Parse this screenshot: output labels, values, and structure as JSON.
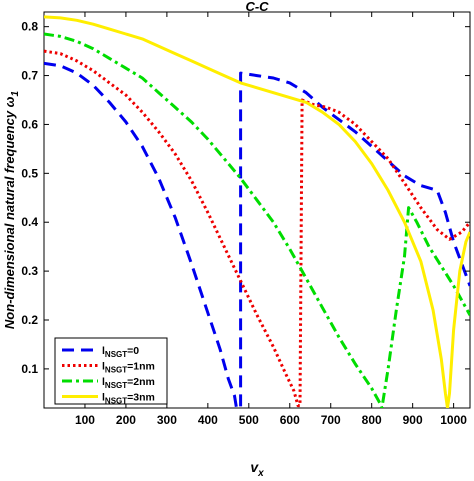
{
  "chart_data": {
    "type": "line",
    "title": "C-C",
    "xlabel": "v",
    "xlabel_sub": "x",
    "ylabel": "Non-dimensional natural frequency ω",
    "ylabel_sub": "1",
    "xlim": [
      0,
      1040
    ],
    "ylim": [
      0.02,
      0.83
    ],
    "xticks": [
      100,
      200,
      300,
      400,
      500,
      600,
      700,
      800,
      900,
      1000
    ],
    "yticks": [
      0.1,
      0.2,
      0.3,
      0.4,
      0.5,
      0.6,
      0.7,
      0.8
    ],
    "grid": false,
    "legend_position": "bottom-left",
    "series": [
      {
        "name": "l",
        "name_sub": "NSGT",
        "name_suffix": "=0",
        "color": "#0000ee",
        "style": "dashed",
        "points": [
          [
            0,
            0.725
          ],
          [
            40,
            0.72
          ],
          [
            80,
            0.705
          ],
          [
            120,
            0.68
          ],
          [
            160,
            0.645
          ],
          [
            200,
            0.605
          ],
          [
            240,
            0.555
          ],
          [
            280,
            0.49
          ],
          [
            320,
            0.41
          ],
          [
            360,
            0.315
          ],
          [
            400,
            0.215
          ],
          [
            430,
            0.14
          ],
          [
            450,
            0.08
          ],
          [
            465,
            0.045
          ],
          [
            470,
            0.02
          ],
          [
            480,
            0.02
          ],
          [
            480,
            0.705
          ],
          [
            520,
            0.7
          ],
          [
            560,
            0.695
          ],
          [
            600,
            0.685
          ],
          [
            640,
            0.665
          ],
          [
            680,
            0.635
          ],
          [
            720,
            0.61
          ],
          [
            760,
            0.585
          ],
          [
            800,
            0.555
          ],
          [
            840,
            0.525
          ],
          [
            880,
            0.495
          ],
          [
            920,
            0.475
          ],
          [
            960,
            0.465
          ],
          [
            980,
            0.42
          ],
          [
            1000,
            0.36
          ],
          [
            1020,
            0.315
          ],
          [
            1040,
            0.27
          ]
        ]
      },
      {
        "name": "l",
        "name_sub": "NSGT",
        "name_suffix": "=1nm",
        "color": "#ee0000",
        "style": "dotted",
        "points": [
          [
            0,
            0.75
          ],
          [
            40,
            0.745
          ],
          [
            80,
            0.73
          ],
          [
            120,
            0.71
          ],
          [
            160,
            0.685
          ],
          [
            200,
            0.66
          ],
          [
            240,
            0.625
          ],
          [
            280,
            0.585
          ],
          [
            320,
            0.54
          ],
          [
            360,
            0.485
          ],
          [
            400,
            0.42
          ],
          [
            440,
            0.35
          ],
          [
            480,
            0.28
          ],
          [
            520,
            0.21
          ],
          [
            560,
            0.145
          ],
          [
            590,
            0.09
          ],
          [
            610,
            0.055
          ],
          [
            620,
            0.025
          ],
          [
            625,
            0.025
          ],
          [
            630,
            0.65
          ],
          [
            660,
            0.64
          ],
          [
            690,
            0.635
          ],
          [
            720,
            0.625
          ],
          [
            760,
            0.6
          ],
          [
            800,
            0.565
          ],
          [
            840,
            0.53
          ],
          [
            880,
            0.48
          ],
          [
            920,
            0.43
          ],
          [
            960,
            0.385
          ],
          [
            990,
            0.365
          ],
          [
            1000,
            0.37
          ],
          [
            1020,
            0.38
          ],
          [
            1040,
            0.4
          ]
        ]
      },
      {
        "name": "l",
        "name_sub": "NSGT",
        "name_suffix": "=2nm",
        "color": "#00dd00",
        "style": "dashdot",
        "points": [
          [
            0,
            0.785
          ],
          [
            40,
            0.78
          ],
          [
            80,
            0.77
          ],
          [
            120,
            0.755
          ],
          [
            160,
            0.735
          ],
          [
            200,
            0.715
          ],
          [
            240,
            0.695
          ],
          [
            280,
            0.665
          ],
          [
            320,
            0.635
          ],
          [
            360,
            0.605
          ],
          [
            400,
            0.57
          ],
          [
            440,
            0.53
          ],
          [
            480,
            0.49
          ],
          [
            520,
            0.445
          ],
          [
            560,
            0.4
          ],
          [
            600,
            0.345
          ],
          [
            640,
            0.285
          ],
          [
            680,
            0.225
          ],
          [
            720,
            0.165
          ],
          [
            760,
            0.11
          ],
          [
            800,
            0.06
          ],
          [
            820,
            0.03
          ],
          [
            825,
            0.02
          ],
          [
            840,
            0.1
          ],
          [
            860,
            0.22
          ],
          [
            880,
            0.33
          ],
          [
            890,
            0.43
          ],
          [
            910,
            0.4
          ],
          [
            940,
            0.35
          ],
          [
            970,
            0.31
          ],
          [
            1000,
            0.27
          ],
          [
            1020,
            0.24
          ],
          [
            1040,
            0.21
          ]
        ]
      },
      {
        "name": "l",
        "name_sub": "NSGT",
        "name_suffix": "=3nm",
        "color": "#ffee00",
        "style": "solid",
        "points": [
          [
            0,
            0.82
          ],
          [
            40,
            0.818
          ],
          [
            80,
            0.813
          ],
          [
            120,
            0.805
          ],
          [
            160,
            0.795
          ],
          [
            200,
            0.785
          ],
          [
            240,
            0.775
          ],
          [
            280,
            0.76
          ],
          [
            320,
            0.745
          ],
          [
            360,
            0.73
          ],
          [
            400,
            0.715
          ],
          [
            440,
            0.7
          ],
          [
            480,
            0.685
          ],
          [
            520,
            0.675
          ],
          [
            560,
            0.665
          ],
          [
            600,
            0.655
          ],
          [
            640,
            0.645
          ],
          [
            680,
            0.625
          ],
          [
            720,
            0.6
          ],
          [
            760,
            0.565
          ],
          [
            800,
            0.52
          ],
          [
            840,
            0.465
          ],
          [
            880,
            0.4
          ],
          [
            920,
            0.32
          ],
          [
            950,
            0.22
          ],
          [
            970,
            0.12
          ],
          [
            980,
            0.05
          ],
          [
            985,
            0.02
          ],
          [
            990,
            0.05
          ],
          [
            1000,
            0.18
          ],
          [
            1015,
            0.3
          ],
          [
            1030,
            0.36
          ],
          [
            1040,
            0.38
          ]
        ]
      }
    ]
  }
}
